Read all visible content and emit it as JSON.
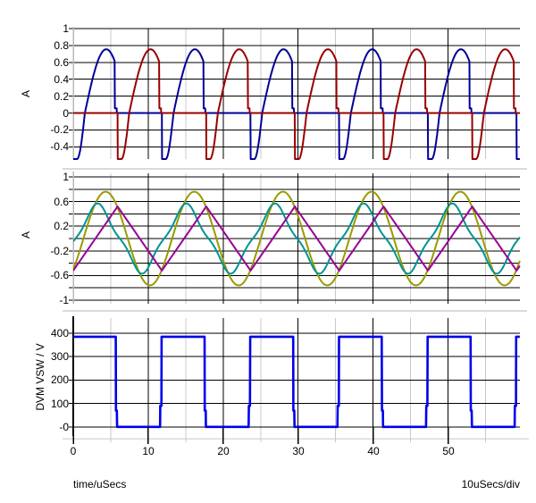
{
  "background": "#FFFFFF",
  "footer": {
    "x_axis_title": "time/uSecs",
    "x_scale_per_div": "10uSecs/div"
  },
  "chart_data": {
    "type": "line",
    "title": "",
    "grid": "on",
    "legend": "none",
    "x_axis": {
      "label": "time/uSecs",
      "per_div_label": "10uSecs/div",
      "unit": "uSecs",
      "range_us": [
        0,
        59.6
      ],
      "major_ticks": [
        0,
        10,
        20,
        30,
        40,
        50
      ],
      "major_tick_labels": [
        "0",
        "10",
        "20",
        "30",
        "40",
        "50"
      ],
      "minor_ticks": [
        5,
        15,
        25,
        35,
        45,
        55
      ]
    },
    "colors": {
      "grid_major": "#000000",
      "grid_minor": "#C8C8C8",
      "axis_gray": "#B8B8B8",
      "separator": "#DADADA",
      "panel1_phase1": "#000099",
      "panel1_phase2": "#990000",
      "panel2_sine_large": "#9A9A00",
      "panel2_sine_distorted": "#009494",
      "panel2_triangle": "#990099",
      "panel3_square": "#0000EE"
    },
    "panels": [
      {
        "ylabel": "A",
        "ylim": [
          -0.545,
          1.0
        ],
        "grid_step": 0.2,
        "ticks": [
          {
            "v": 1.0,
            "label": "1"
          },
          {
            "v": 0.8,
            "label": "0.8"
          },
          {
            "v": 0.6,
            "label": "0.6"
          },
          {
            "v": 0.4,
            "label": "0.4"
          },
          {
            "v": 0.2,
            "label": "0.2"
          },
          {
            "v": 0.0,
            "label": "0"
          },
          {
            "v": -0.2,
            "label": "-0.2"
          },
          {
            "v": -0.4,
            "label": "-0.4"
          }
        ],
        "series": [
          {
            "id": "rectified-current-phase1",
            "color": "#000099",
            "shape": "rectified_hump",
            "period_us": 11.83,
            "start_us": 0,
            "peak_a": 0.755,
            "dip_a": -0.545,
            "zero_cross_rel_us": 1.55,
            "drop_rel_us": 5.55,
            "ledge_a": 0.055,
            "width": 2
          },
          {
            "id": "rectified-current-phase2",
            "color": "#990000",
            "shape": "rectified_hump",
            "period_us": 11.83,
            "start_us": 5.915,
            "peak_a": 0.755,
            "dip_a": -0.545,
            "zero_cross_rel_us": 1.55,
            "drop_rel_us": 5.55,
            "ledge_a": 0.055,
            "width": 2
          }
        ]
      },
      {
        "ylabel": "A",
        "ylim": [
          -1.06,
          1.06
        ],
        "grid_step": 0.2,
        "ticks": [
          {
            "v": 1.0,
            "label": "1"
          },
          {
            "v": 0.8,
            "label": ""
          },
          {
            "v": 0.6,
            "label": "0.6"
          },
          {
            "v": 0.4,
            "label": ""
          },
          {
            "v": 0.2,
            "label": "0.2"
          },
          {
            "v": 0.0,
            "label": ""
          },
          {
            "v": -0.2,
            "label": "-0.2"
          },
          {
            "v": -0.4,
            "label": ""
          },
          {
            "v": -0.6,
            "label": "-0.6"
          },
          {
            "v": -0.8,
            "label": ""
          },
          {
            "v": -1.0,
            "label": "-1"
          }
        ],
        "series": [
          {
            "id": "output-current-sine",
            "color": "#9A9A00",
            "shape": "sine",
            "amp_a": 0.76,
            "h3_a": 0,
            "period_us": 11.83,
            "zero_cross_us": 1.36,
            "width": 2
          },
          {
            "id": "resonant-tank-current",
            "color": "#009494",
            "shape": "sine",
            "amp_a": 0.5,
            "h3_a": 0.07,
            "period_us": 11.83,
            "zero_cross_us": 0.3,
            "width": 2
          },
          {
            "id": "magnetizing-current-triangle",
            "color": "#990099",
            "shape": "triangle",
            "min_a": -0.52,
            "max_a": 0.52,
            "period_us": 11.83,
            "min_at_us": 0,
            "width": 2
          }
        ]
      },
      {
        "ylabel": "DVM VSW / V",
        "ylim": [
          -38,
          466
        ],
        "grid_step": 100,
        "ticks": [
          {
            "v": 400,
            "label": "400"
          },
          {
            "v": 300,
            "label": "300"
          },
          {
            "v": 200,
            "label": "200"
          },
          {
            "v": 100,
            "label": "100"
          },
          {
            "v": 0,
            "label": "-0"
          }
        ],
        "series": [
          {
            "id": "switch-node-voltage-square",
            "color": "#0000EE",
            "shape": "square",
            "period_us": 11.83,
            "high_v": 385,
            "low_v": 0,
            "fall_us": 5.7,
            "rise_us": 11.78,
            "foot_v": 70,
            "width": 2.6
          }
        ]
      }
    ]
  }
}
